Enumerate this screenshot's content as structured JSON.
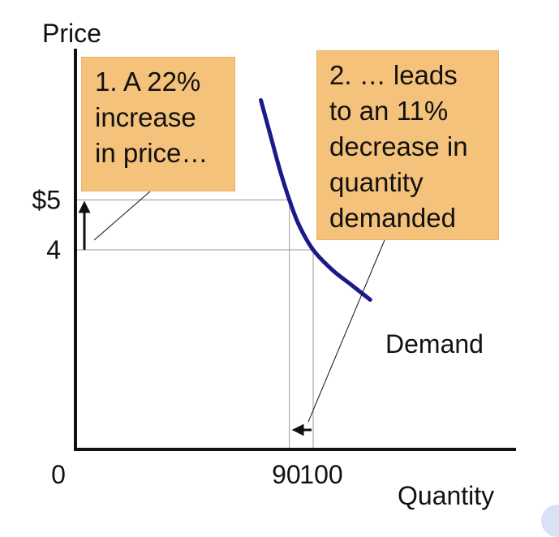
{
  "chart_data": {
    "type": "line",
    "x_axis_label": "Quantity",
    "y_axis_label": "Price",
    "x_ticks": [
      {
        "value": 0,
        "label": "0"
      },
      {
        "value": 90,
        "label": "90"
      },
      {
        "value": 100,
        "label": "100"
      }
    ],
    "y_ticks": [
      {
        "value": 5,
        "label": "$5"
      },
      {
        "value": 4,
        "label": "4"
      }
    ],
    "series": [
      {
        "name": "Demand",
        "color": "#1a1a8c",
        "points": [
          {
            "x": 78,
            "y": 7.0
          },
          {
            "x": 82,
            "y": 6.3
          },
          {
            "x": 86,
            "y": 5.6
          },
          {
            "x": 90,
            "y": 5.0
          },
          {
            "x": 94,
            "y": 4.5
          },
          {
            "x": 100,
            "y": 4.0
          },
          {
            "x": 108,
            "y": 3.6
          },
          {
            "x": 116,
            "y": 3.3
          },
          {
            "x": 124,
            "y": 3.0
          }
        ]
      }
    ],
    "reference_points": [
      {
        "x": 90,
        "y": 5
      },
      {
        "x": 100,
        "y": 4
      }
    ],
    "x_range": [
      0,
      155
    ],
    "y_range": [
      0,
      8.6
    ],
    "grid": false,
    "legend": "none",
    "annotations": {
      "box1_lines": [
        "1. A  22%",
        "increase",
        "in price…"
      ],
      "box2_lines": [
        "2. … leads",
        "to an 11%",
        "decrease in",
        "quantity",
        "demanded"
      ]
    },
    "colors": {
      "box_fill": "#f4c27a",
      "axis": "#111111",
      "guide": "#999999"
    }
  }
}
